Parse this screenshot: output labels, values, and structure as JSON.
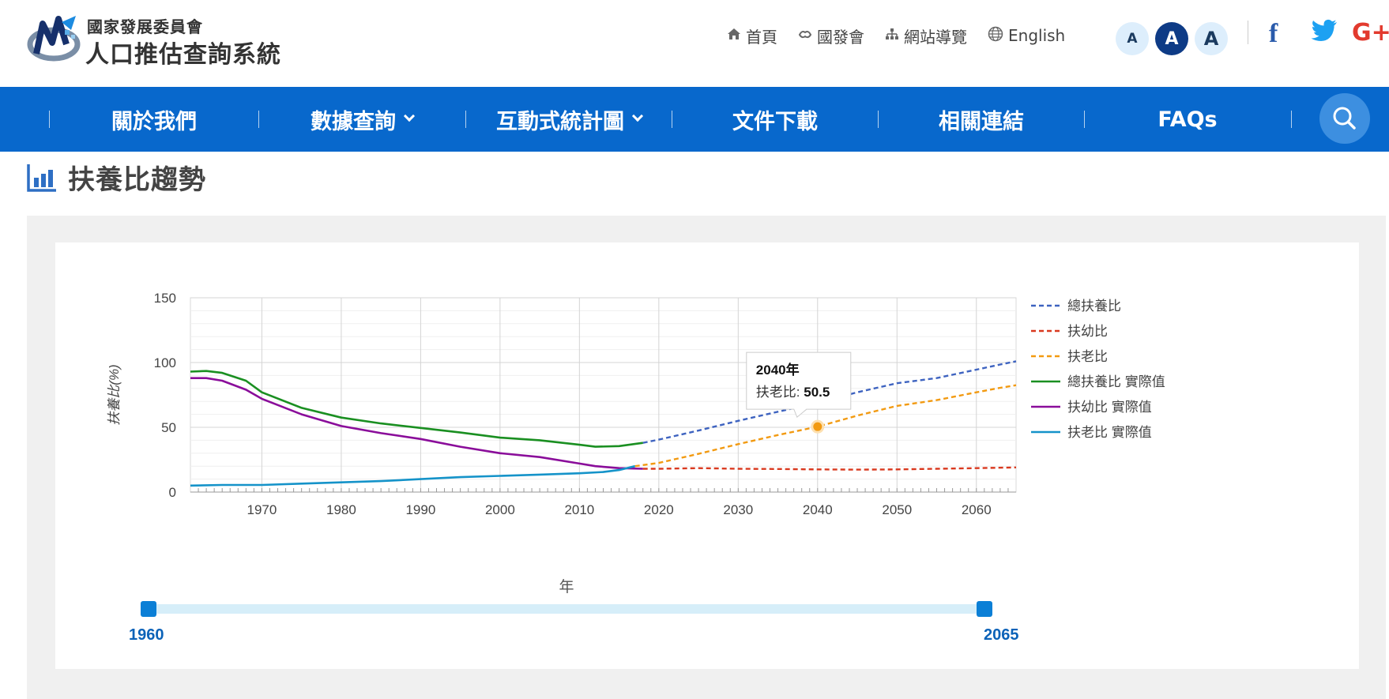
{
  "header": {
    "org_name": "國家發展委員會",
    "system_name": "人口推估查詢系統",
    "links": [
      {
        "label": "首頁",
        "icon": "home-icon"
      },
      {
        "label": "國發會",
        "icon": "handshake-icon"
      },
      {
        "label": "網站導覽",
        "icon": "sitemap-icon"
      },
      {
        "label": "English",
        "icon": "globe-icon"
      }
    ],
    "font_sizes": [
      "A",
      "A",
      "A"
    ],
    "social": {
      "facebook": "f",
      "googleplus": "G+"
    }
  },
  "nav": {
    "items": [
      {
        "label": "關於我們",
        "dropdown": false
      },
      {
        "label": "數據查詢",
        "dropdown": true
      },
      {
        "label": "互動式統計圖",
        "dropdown": true
      },
      {
        "label": "文件下載",
        "dropdown": false
      },
      {
        "label": "相關連結",
        "dropdown": false
      },
      {
        "label": "FAQs",
        "dropdown": false
      }
    ]
  },
  "page": {
    "title": "扶養比趨勢"
  },
  "slider": {
    "axis_label": "年",
    "min_label": "1960",
    "max_label": "2065",
    "start": 1960,
    "end": 2065
  },
  "tooltip": {
    "title": "2040年",
    "label": "扶老比:",
    "value": "50.5"
  },
  "colors": {
    "nav": "#0868cc",
    "blue": "#3e63c0",
    "red": "#d9391f",
    "orange": "#f29a11",
    "green": "#1a8f21",
    "purple": "#8a0d9a",
    "teal": "#1593c9"
  },
  "chart_data": {
    "type": "line",
    "title": "",
    "xlabel": "",
    "ylabel": "扶養比(%)",
    "xlim": [
      1961,
      2065
    ],
    "ylim": [
      0,
      150
    ],
    "x_ticks": [
      1970,
      1980,
      1990,
      2000,
      2010,
      2020,
      2030,
      2040,
      2050,
      2060
    ],
    "y_ticks": [
      0,
      50,
      100,
      150
    ],
    "grid": true,
    "legend_position": "right",
    "series": [
      {
        "name": "總扶養比",
        "style": "dashed",
        "color": "#3e63c0",
        "x": [
          2018,
          2020,
          2025,
          2030,
          2035,
          2040,
          2045,
          2050,
          2055,
          2060,
          2063,
          2065
        ],
        "y": [
          38.0,
          40.5,
          47.5,
          55.0,
          62.0,
          69.0,
          77.0,
          84.0,
          88.0,
          94.5,
          98.5,
          101.0
        ]
      },
      {
        "name": "扶幼比",
        "style": "dashed",
        "color": "#d9391f",
        "x": [
          2018,
          2020,
          2025,
          2030,
          2035,
          2040,
          2045,
          2050,
          2055,
          2060,
          2065
        ],
        "y": [
          18.0,
          18.0,
          18.5,
          18.0,
          17.8,
          17.5,
          17.3,
          17.5,
          18.0,
          18.5,
          19.0
        ]
      },
      {
        "name": "扶老比",
        "style": "dashed",
        "color": "#f29a11",
        "x": [
          2017,
          2020,
          2025,
          2030,
          2035,
          2040,
          2045,
          2050,
          2055,
          2060,
          2063,
          2065
        ],
        "y": [
          20.0,
          22.5,
          29.5,
          37.0,
          44.0,
          50.5,
          59.0,
          66.5,
          71.0,
          77.0,
          80.5,
          82.5
        ]
      },
      {
        "name": "總扶養比 實際值",
        "style": "solid",
        "color": "#1a8f21",
        "x": [
          1961,
          1963,
          1965,
          1968,
          1970,
          1975,
          1980,
          1985,
          1990,
          1995,
          2000,
          2005,
          2010,
          2012,
          2015,
          2018
        ],
        "y": [
          93.0,
          93.5,
          92.0,
          86.0,
          77.0,
          65.0,
          57.5,
          53.0,
          49.5,
          46.0,
          42.0,
          40.0,
          36.5,
          35.0,
          35.5,
          38.0
        ]
      },
      {
        "name": "扶幼比 實際值",
        "style": "solid",
        "color": "#8a0d9a",
        "x": [
          1961,
          1963,
          1965,
          1968,
          1970,
          1975,
          1980,
          1985,
          1990,
          1995,
          2000,
          2005,
          2010,
          2012,
          2015,
          2018
        ],
        "y": [
          88.0,
          88.0,
          86.0,
          79.0,
          72.0,
          60.0,
          51.0,
          45.5,
          41.0,
          35.0,
          30.0,
          27.0,
          22.0,
          20.0,
          18.5,
          18.0
        ]
      },
      {
        "name": "扶老比 實際值",
        "style": "solid",
        "color": "#1593c9",
        "x": [
          1961,
          1965,
          1970,
          1975,
          1980,
          1985,
          1990,
          1995,
          2000,
          2005,
          2010,
          2013,
          2015,
          2017
        ],
        "y": [
          5.0,
          5.5,
          5.5,
          6.5,
          7.5,
          8.5,
          10.0,
          11.5,
          12.5,
          13.5,
          14.5,
          15.5,
          17.0,
          20.0
        ]
      }
    ],
    "highlight": {
      "series": "扶老比",
      "x": 2040,
      "y": 50.5
    }
  }
}
